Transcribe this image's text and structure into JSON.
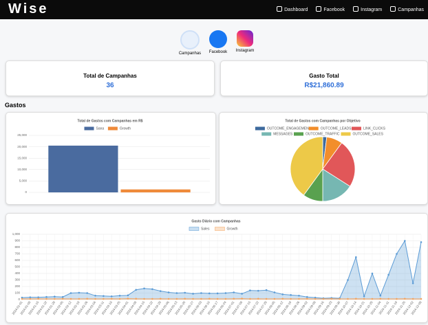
{
  "brand": "Wise",
  "nav": {
    "links": [
      "Dashboard",
      "Facebook",
      "Instagram",
      "Campanhas"
    ]
  },
  "platforms": [
    "Campanhas",
    "Facebook",
    "Instagram"
  ],
  "cards": [
    {
      "label": "Total de Campanhas",
      "value": "36"
    },
    {
      "label": "Gasto Total",
      "value": "R$21,860.89"
    }
  ],
  "section_title": "Gastos",
  "chart_data": [
    {
      "type": "bar",
      "title": "Total de Gastos com Campanhas em R$",
      "categories": [
        null
      ],
      "series": [
        {
          "name": "Sana",
          "color": "#4a6b9f",
          "values": [
            20500
          ]
        },
        {
          "name": "Growth",
          "color": "#ef8a3a",
          "values": [
            1300
          ]
        }
      ],
      "ylim": [
        0,
        25000
      ],
      "yticks": [
        0,
        {
          "value": 5000,
          "label": "5,000"
        },
        {
          "value": 10000,
          "label": "10,000"
        },
        {
          "value": 15000,
          "label": "15,000"
        },
        {
          "value": 20000,
          "label": "20,000"
        },
        {
          "value": 25000,
          "label": "25,000"
        }
      ],
      "grid": true
    },
    {
      "type": "pie",
      "title": "Total de Gastos com Campanhas por Objetivo",
      "categories": [
        "OUTCOME_ENGAGEMENT",
        "OUTCOME_LEADS",
        "LINK_CLICKS",
        "MESSAGES",
        "OUTCOME_TRAFFIC",
        "OUTCOME_SALES"
      ],
      "values": [
        2,
        8,
        24,
        16,
        10,
        40
      ],
      "colors": [
        "#3e6a9e",
        "#f28e2b",
        "#e15759",
        "#76b7b2",
        "#59a14f",
        "#edc948"
      ]
    },
    {
      "type": "line",
      "title": "Gasto Diário com Campanhas",
      "categories": [
        "2024-01-01",
        "2024-01-08",
        "2024-01-15",
        "2024-01-22",
        "2024-01-29",
        "2024-02-05",
        "2024-02-12",
        "2024-02-19",
        "2024-02-26",
        "2024-03-04",
        "2024-03-11",
        "2024-03-18",
        "2024-03-25",
        "2024-04-01",
        "2024-04-08",
        "2024-04-15",
        "2024-04-22",
        "2024-04-29",
        "2024-05-06",
        "2024-05-13",
        "2024-05-20",
        "2024-05-27",
        "2024-06-03",
        "2024-06-10",
        "2024-06-17",
        "2024-06-24",
        "2024-07-01",
        "2024-07-08",
        "2024-07-15",
        "2024-07-22",
        "2024-07-29",
        "2024-08-05",
        "2024-08-12",
        "2024-08-19",
        "2024-08-26",
        "2024-09-02",
        "2024-09-09",
        "2024-09-16",
        "2024-09-23",
        "2024-09-30",
        "2024-10-07",
        "2024-10-14",
        "2024-10-21",
        "2024-10-28",
        "2024-11-04",
        "2024-11-11",
        "2024-11-18",
        "2024-11-25",
        "2024-12-02",
        "2024-12-09"
      ],
      "series": [
        {
          "name": "Sales",
          "color": "#5b9bd5",
          "values": [
            30,
            35,
            35,
            40,
            45,
            40,
            100,
            105,
            100,
            60,
            55,
            50,
            60,
            65,
            150,
            170,
            160,
            130,
            110,
            100,
            105,
            90,
            100,
            95,
            95,
            100,
            110,
            90,
            140,
            135,
            145,
            110,
            80,
            70,
            60,
            40,
            30,
            20,
            25,
            20,
            300,
            650,
            50,
            400,
            60,
            380,
            700,
            900,
            250,
            880
          ]
        },
        {
          "name": "Growth",
          "color": "#f4a460",
          "values": [
            10,
            10,
            12,
            10,
            10,
            12,
            10,
            10,
            12,
            10,
            10,
            12,
            10,
            15,
            12,
            10,
            10,
            12,
            10,
            10,
            12,
            10,
            10,
            12,
            10,
            10,
            12,
            15,
            10,
            12,
            10,
            10,
            12,
            10,
            10,
            12,
            10,
            10,
            12,
            10,
            10,
            12,
            10,
            10,
            12,
            10,
            10,
            12,
            10,
            10
          ]
        }
      ],
      "ylim": [
        0,
        1000
      ],
      "yticks": [
        0,
        100,
        200,
        300,
        400,
        500,
        600,
        700,
        800,
        900,
        {
          "value": 1000,
          "label": "1,000"
        }
      ],
      "grid": true
    }
  ]
}
